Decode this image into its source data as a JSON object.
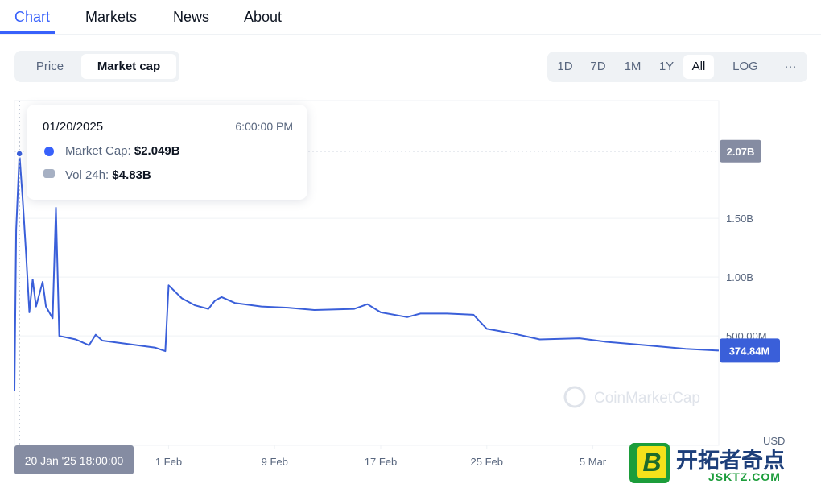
{
  "tabs": [
    "Chart",
    "Markets",
    "News",
    "About"
  ],
  "toggle": [
    "Price",
    "Market cap"
  ],
  "ranges": [
    "1D",
    "7D",
    "1M",
    "1Y",
    "All",
    "LOG",
    "···"
  ],
  "tooltip": {
    "date": "01/20/2025",
    "time": "6:00:00 PM",
    "cap_label": "Market Cap:",
    "cap": "$2.049B",
    "vol_label": "Vol 24h:",
    "vol": "$4.83B"
  },
  "watermark": "CoinMarketCap",
  "currency": "USD",
  "site_logo": {
    "icon": "B",
    "name": "开拓者奇点",
    "url": "JSKTZ.COM"
  },
  "chart_data": {
    "type": "line",
    "x": [
      "2025-01-20T09:00",
      "2025-01-20T12:00",
      "2025-01-20T18:00",
      "2025-01-21T00:00",
      "2025-01-21T06:00",
      "2025-01-21T12:00",
      "2025-01-21T18:00",
      "2025-01-22T00:00",
      "2025-01-22T12:00",
      "2025-01-22T18:00",
      "2025-01-23T06:00",
      "2025-01-23T12:00",
      "2025-01-23T18:00",
      "2025-01-25T00:00",
      "2025-01-26T00:00",
      "2025-01-26T12:00",
      "2025-01-27T00:00",
      "2025-01-29T00:00",
      "2025-01-31T00:00",
      "2025-01-31T18:00",
      "2025-02-01T00:00",
      "2025-02-02T00:00",
      "2025-02-03T00:00",
      "2025-02-04T00:00",
      "2025-02-04T12:00",
      "2025-02-05T00:00",
      "2025-02-06T00:00",
      "2025-02-08T00:00",
      "2025-02-10T00:00",
      "2025-02-12T00:00",
      "2025-02-15T00:00",
      "2025-02-16T00:00",
      "2025-02-17T00:00",
      "2025-02-19T00:00",
      "2025-02-20T00:00",
      "2025-02-22T00:00",
      "2025-02-24T00:00",
      "2025-02-25T00:00",
      "2025-02-27T00:00",
      "2025-03-01T00:00",
      "2025-03-04T00:00",
      "2025-03-06T00:00",
      "2025-03-09T00:00",
      "2025-03-12T00:00",
      "2025-03-14T12:00"
    ],
    "series": [
      {
        "name": "Market Cap",
        "color": "#3a5fd9",
        "values": [
          30000000,
          1400000000,
          2049000000,
          1650000000,
          1200000000,
          700000000,
          980000000,
          750000000,
          960000000,
          750000000,
          650000000,
          1590000000,
          500000000,
          470000000,
          420000000,
          510000000,
          460000000,
          430000000,
          400000000,
          370000000,
          930000000,
          820000000,
          760000000,
          730000000,
          800000000,
          830000000,
          780000000,
          750000000,
          740000000,
          720000000,
          730000000,
          770000000,
          700000000,
          660000000,
          690000000,
          690000000,
          680000000,
          560000000,
          520000000,
          470000000,
          480000000,
          450000000,
          420000000,
          390000000,
          374840000
        ]
      }
    ],
    "xlim": [
      "2025-01-20T09:00",
      "2025-03-14T12:00"
    ],
    "xticks": [
      {
        "value": "2025-02-01T00:00",
        "label": "1 Feb"
      },
      {
        "value": "2025-02-09T00:00",
        "label": "9 Feb"
      },
      {
        "value": "2025-02-17T00:00",
        "label": "17 Feb"
      },
      {
        "value": "2025-02-25T00:00",
        "label": "25 Feb"
      },
      {
        "value": "2025-03-05T00:00",
        "label": "5 Mar"
      }
    ],
    "ylim": [
      -430000000,
      2500000000
    ],
    "yticks": [
      {
        "value": 500000000,
        "label": "500.00M"
      },
      {
        "value": 1000000000,
        "label": "1.00B"
      },
      {
        "value": 1500000000,
        "label": "1.50B"
      }
    ],
    "hover_x": {
      "value": "2025-01-20T18:00",
      "label": "20 Jan '25 18:00:00"
    },
    "hover_y": {
      "value": 2070000000,
      "label": "2.07B"
    },
    "current": {
      "value": 374840000,
      "label": "374.84M"
    },
    "grid": true
  }
}
